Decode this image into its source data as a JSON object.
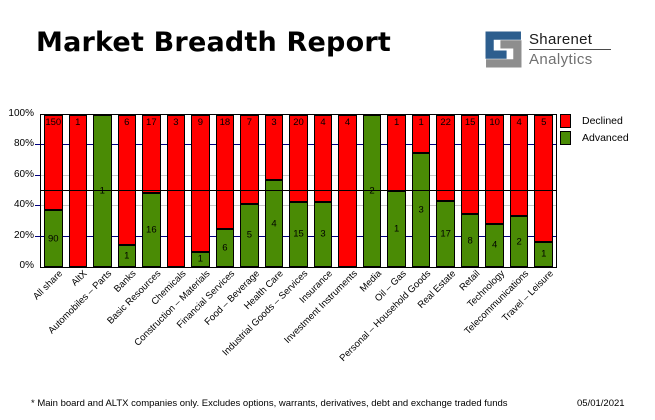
{
  "header": {
    "title": "Market Breadth Report",
    "logo": {
      "name": "Sharenet",
      "sub": "Analytics",
      "blue": "#2d5e8e",
      "gray": "#8e8e8e"
    }
  },
  "chart_data": {
    "type": "bar",
    "stacked_percent": true,
    "categories": [
      "All share",
      "AltX",
      "Automobiles – Parts",
      "Banks",
      "Basic Resources",
      "Chemicals",
      "Construction – Materials",
      "Financial Services",
      "Food – Beverage",
      "Health Care",
      "Industrial Goods – Services",
      "Insurance",
      "Investment Instruments",
      "Media",
      "Oil – Gas",
      "Personal – Household Goods",
      "Real Estate",
      "Retail",
      "Technology",
      "Telecommunications",
      "Travel – Leisure"
    ],
    "series": [
      {
        "name": "Declined",
        "color": "#ff0000",
        "values": [
          150,
          1,
          0,
          6,
          17,
          3,
          9,
          18,
          7,
          3,
          20,
          4,
          4,
          0,
          1,
          1,
          22,
          15,
          10,
          4,
          5
        ]
      },
      {
        "name": "Advanced",
        "color": "#4a8b05",
        "values": [
          90,
          0,
          1,
          1,
          16,
          0,
          1,
          6,
          5,
          4,
          15,
          3,
          0,
          2,
          1,
          3,
          17,
          8,
          4,
          2,
          1
        ]
      }
    ],
    "y_ticks": [
      "0%",
      "20%",
      "40%",
      "60%",
      "80%",
      "100%"
    ],
    "ylim": [
      0,
      100
    ],
    "gridlines": {
      "navy": [
        20,
        80
      ],
      "gray": [
        40,
        60
      ],
      "navy_color": "#000080",
      "gray_color": "#c9c9c9",
      "reference_line": 50
    },
    "legend": {
      "position": "top-right",
      "items": [
        {
          "label": "Declined",
          "color": "#ff0000"
        },
        {
          "label": "Advanced",
          "color": "#4a8b05"
        }
      ]
    }
  },
  "footer": {
    "note": "* Main board and ALTX companies only. Excludes options, warrants, derivatives, debt and exchange traded funds",
    "date": "05/01/2021"
  }
}
